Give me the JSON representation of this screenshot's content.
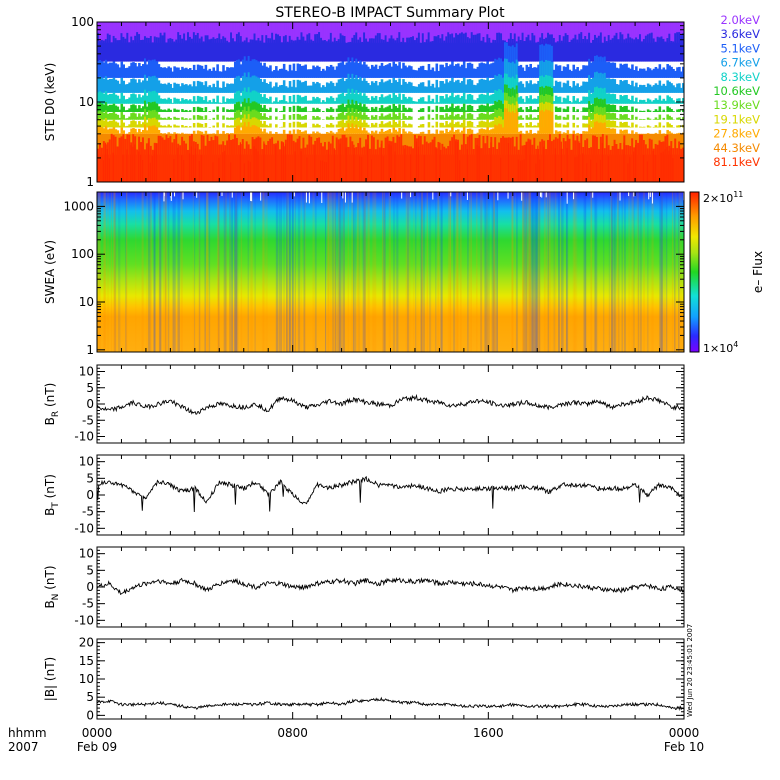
{
  "title": "STEREO-B IMPACT Summary Plot",
  "stamp": "Wed Jun 20 23:45:01 2007",
  "colorbar": {
    "top": "2×10",
    "top_exp": "11",
    "bottom": "1×10",
    "bottom_exp": "4",
    "label": "e– Flux"
  },
  "xaxis": {
    "row1_label": "hhmm",
    "row2_label": "2007",
    "ticks": [
      {
        "t": 0,
        "hhmm": "0000",
        "date": "Feb 09"
      },
      {
        "t": 8,
        "hhmm": "0800",
        "date": ""
      },
      {
        "t": 16,
        "hhmm": "1600",
        "date": ""
      },
      {
        "t": 24,
        "hhmm": "0000",
        "date": "Feb 10"
      }
    ]
  },
  "chart_data": [
    {
      "type": "area",
      "name": "ste",
      "ylabel": "STE D0 (keV)",
      "yscale": "log",
      "ylim": [
        1,
        100
      ],
      "yticks": [
        "1",
        "10",
        "100"
      ],
      "xlim": [
        0,
        24
      ],
      "legend_position": "right",
      "channels": [
        {
          "label": "2.0keV",
          "color": "#9933ff"
        },
        {
          "label": "3.6keV",
          "color": "#2a2ae0"
        },
        {
          "label": "5.1keV",
          "color": "#1c5ef7"
        },
        {
          "label": "6.7keV",
          "color": "#14a0e8"
        },
        {
          "label": "8.3keV",
          "color": "#11d2c8"
        },
        {
          "label": "10.6keV",
          "color": "#23c823"
        },
        {
          "label": "13.9keV",
          "color": "#6adc1e"
        },
        {
          "label": "19.1keV",
          "color": "#d8d800"
        },
        {
          "label": "27.8keV",
          "color": "#ffaa00"
        },
        {
          "label": "44.3keV",
          "color": "#f58a00"
        },
        {
          "label": "81.1keV",
          "color": "#ff3300"
        }
      ]
    },
    {
      "type": "heatmap",
      "name": "swea",
      "ylabel": "SWEA (eV)",
      "yscale": "log",
      "ylim": [
        0.9,
        2000
      ],
      "yticks": [
        "1",
        "10",
        "100",
        "1000"
      ],
      "xlim": [
        0,
        24
      ],
      "color_range": [
        10000,
        200000000000
      ],
      "colorbar_label": "e– Flux"
    },
    {
      "type": "line",
      "name": "br",
      "ylabel": "B",
      "ylabel_sub": "R",
      "ylabel_unit": "(nT)",
      "ylim": [
        -12,
        12
      ],
      "yticks": [
        "-10",
        "-5",
        "0",
        "5",
        "10"
      ],
      "xlim": [
        0,
        24
      ],
      "x": [
        0,
        0.5,
        1,
        1.5,
        2,
        2.5,
        3,
        3.5,
        4,
        4.5,
        5,
        5.5,
        6,
        6.5,
        7,
        7.5,
        8,
        8.5,
        9,
        9.5,
        10,
        10.5,
        11,
        11.5,
        12,
        12.5,
        13,
        13.5,
        14,
        14.5,
        15,
        15.5,
        16,
        16.5,
        17,
        17.5,
        18,
        18.5,
        19,
        19.5,
        20,
        20.5,
        21,
        21.5,
        22,
        22.5,
        23,
        23.5,
        24
      ],
      "values": [
        -1,
        -2,
        -1,
        0.5,
        -1,
        0,
        1,
        -1,
        -3,
        -1,
        0,
        -0.5,
        -1,
        0,
        -2,
        2,
        1,
        -1,
        -0.5,
        1,
        0,
        1.5,
        0.5,
        0,
        -0.5,
        1.5,
        2,
        1,
        0.5,
        -0.5,
        0,
        1,
        0.5,
        -0.5,
        0,
        0.5,
        -0.5,
        -1,
        0,
        0.5,
        0,
        1,
        -1,
        0,
        0.5,
        2,
        1,
        -1,
        -1
      ]
    },
    {
      "type": "line",
      "name": "bt",
      "ylabel": "B",
      "ylabel_sub": "T",
      "ylabel_unit": "(nT)",
      "ylim": [
        -12,
        12
      ],
      "yticks": [
        "-10",
        "-5",
        "0",
        "5",
        "10"
      ],
      "xlim": [
        0,
        24
      ],
      "x": [
        0,
        0.5,
        1,
        1.5,
        2,
        2.5,
        3,
        3.5,
        4,
        4.5,
        5,
        5.5,
        6,
        6.5,
        7,
        7.5,
        8,
        8.5,
        9,
        9.5,
        10,
        10.5,
        11,
        11.5,
        12,
        12.5,
        13,
        13.5,
        14,
        14.5,
        15,
        15.5,
        16,
        16.5,
        17,
        17.5,
        18,
        18.5,
        19,
        19.5,
        20,
        20.5,
        21,
        21.5,
        22,
        22.5,
        23,
        23.5,
        24
      ],
      "values": [
        3,
        4,
        3,
        1,
        -1,
        4,
        3,
        1,
        2,
        -2,
        4,
        3,
        2,
        4,
        0,
        4,
        0,
        -3,
        3,
        2,
        3,
        4,
        5,
        3,
        3,
        2,
        3,
        2,
        1,
        2,
        1.5,
        2,
        2,
        2,
        2,
        2.5,
        2,
        1,
        3,
        3,
        3,
        2,
        2,
        2,
        3,
        0,
        3,
        2,
        -1
      ]
    },
    {
      "type": "line",
      "name": "bn",
      "ylabel": "B",
      "ylabel_sub": "N",
      "ylabel_unit": "(nT)",
      "ylim": [
        -12,
        12
      ],
      "yticks": [
        "-10",
        "-5",
        "0",
        "5",
        "10"
      ],
      "xlim": [
        0,
        24
      ],
      "x": [
        0,
        0.5,
        1,
        1.5,
        2,
        2.5,
        3,
        3.5,
        4,
        4.5,
        5,
        5.5,
        6,
        6.5,
        7,
        7.5,
        8,
        8.5,
        9,
        9.5,
        10,
        10.5,
        11,
        11.5,
        12,
        12.5,
        13,
        13.5,
        14,
        14.5,
        15,
        15.5,
        16,
        16.5,
        17,
        17.5,
        18,
        18.5,
        19,
        19.5,
        20,
        20.5,
        21,
        21.5,
        22,
        22.5,
        23,
        23.5,
        24
      ],
      "values": [
        0,
        1,
        -2,
        0,
        1,
        2,
        1,
        2,
        1,
        -1,
        1,
        2,
        1,
        0,
        1,
        1,
        0,
        0,
        1,
        1.5,
        2,
        1,
        2,
        1,
        2,
        2,
        1.5,
        2,
        1,
        1.5,
        1,
        1,
        0.5,
        0,
        -1,
        0,
        -0.5,
        0,
        1,
        0.5,
        0,
        -0.5,
        -1,
        -1,
        0,
        0.5,
        -0.5,
        0,
        -1
      ]
    },
    {
      "type": "line",
      "name": "bmag",
      "ylabel": "|B| (nT)",
      "ylim": [
        -1,
        21
      ],
      "yticks": [
        "0",
        "5",
        "10",
        "15",
        "20"
      ],
      "xlim": [
        0,
        24
      ],
      "x": [
        0,
        0.5,
        1,
        1.5,
        2,
        2.5,
        3,
        3.5,
        4,
        4.5,
        5,
        5.5,
        6,
        6.5,
        7,
        7.5,
        8,
        8.5,
        9,
        9.5,
        10,
        10.5,
        11,
        11.5,
        12,
        12.5,
        13,
        13.5,
        14,
        14.5,
        15,
        15.5,
        16,
        16.5,
        17,
        17.5,
        18,
        18.5,
        19,
        19.5,
        20,
        20.5,
        21,
        21.5,
        22,
        22.5,
        23,
        23.5,
        24
      ],
      "values": [
        3.5,
        4,
        3,
        3,
        3,
        3.5,
        3,
        2.5,
        2,
        2.5,
        3,
        3,
        3,
        3,
        3.5,
        3,
        3,
        3,
        3,
        3.5,
        3,
        4,
        4,
        4.5,
        4,
        3.5,
        3.5,
        3,
        3,
        3,
        2.5,
        2.5,
        2.5,
        2.5,
        3,
        2.5,
        2.5,
        2.5,
        2.5,
        3,
        3,
        2.5,
        2.5,
        3,
        3,
        3,
        3,
        2,
        2
      ]
    }
  ]
}
